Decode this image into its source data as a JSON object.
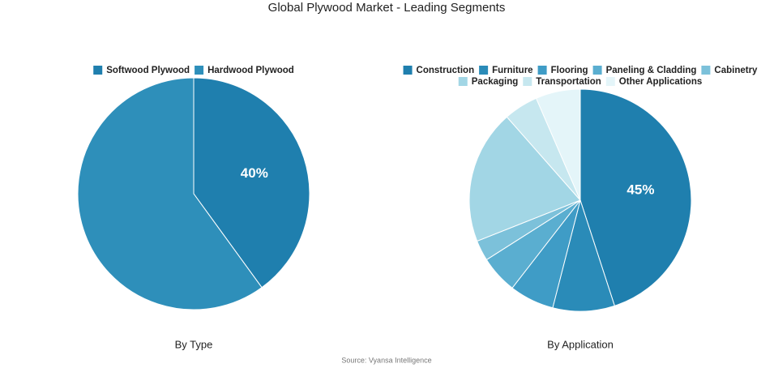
{
  "title": "Global Plywood Market - Leading Segments",
  "source": "Source: Vyansa Intelligence",
  "chart_data": [
    {
      "type": "pie",
      "title": "By Type",
      "categories": [
        "Softwood Plywood",
        "Hardwood Plywood"
      ],
      "values": [
        40,
        60
      ],
      "value_labels": [
        "40%",
        null
      ],
      "colors": [
        "#1f7fae",
        "#2e8fba"
      ],
      "legend": "top"
    },
    {
      "type": "pie",
      "title": "By Application",
      "categories": [
        "Construction",
        "Furniture",
        "Flooring",
        "Paneling & Cladding",
        "Cabinetry",
        "Packaging",
        "Transportation",
        "Other Applications"
      ],
      "values": [
        45,
        9,
        6.5,
        5.5,
        3,
        19.5,
        5,
        6.5
      ],
      "value_labels": [
        "45%",
        null,
        null,
        null,
        null,
        null,
        null,
        null
      ],
      "colors": [
        "#1f7fae",
        "#2a8bb8",
        "#3f9cc6",
        "#5aaed0",
        "#7cc1da",
        "#a2d6e5",
        "#c6e7ef",
        "#e4f5f9"
      ],
      "legend": "top"
    }
  ]
}
